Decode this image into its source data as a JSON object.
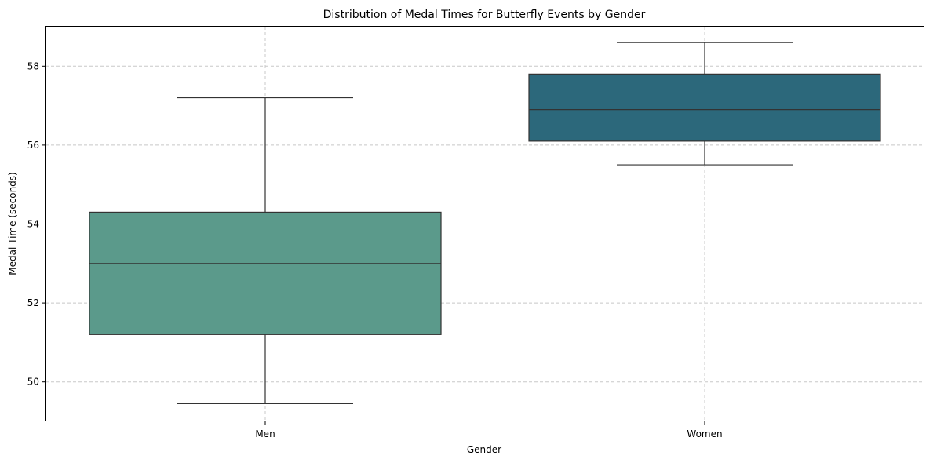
{
  "chart_data": {
    "type": "box",
    "title": "Distribution of Medal Times for Butterfly Events by Gender",
    "xlabel": "Gender",
    "ylabel": "Medal Time (seconds)",
    "categories": [
      "Men",
      "Women"
    ],
    "boxes": [
      {
        "name": "Men",
        "whisker_low": 49.45,
        "q1": 51.2,
        "median": 53.0,
        "q3": 54.3,
        "whisker_high": 57.2,
        "color": "#5b9a8b"
      },
      {
        "name": "Women",
        "whisker_low": 55.5,
        "q1": 56.1,
        "median": 56.9,
        "q3": 57.8,
        "whisker_high": 58.6,
        "color": "#2c687b"
      }
    ],
    "ylim": [
      49.0,
      59.0
    ],
    "yticks": [
      50,
      52,
      54,
      56,
      58
    ],
    "ytick_labels": [
      "50",
      "52",
      "54",
      "56",
      "58"
    ],
    "grid": true,
    "grid_style": "dashed",
    "line_color": "#333333"
  }
}
